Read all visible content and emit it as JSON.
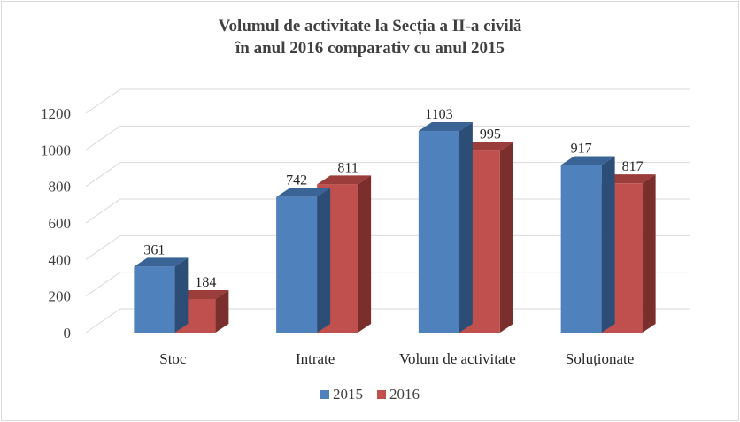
{
  "chart_data": {
    "type": "bar",
    "title": [
      "Volumul de activitate la Secția a II-a civilă",
      "în anul 2016 comparativ cu anul 2015"
    ],
    "categories": [
      "Stoc",
      "Intrate",
      "Volum de activitate",
      "Soluționate"
    ],
    "series": [
      {
        "name": "2015",
        "values": [
          361,
          742,
          1103,
          917
        ],
        "color": "#4f81bd",
        "top_color": "#3a6496",
        "side_color": "#2c4d75"
      },
      {
        "name": "2016",
        "values": [
          184,
          811,
          995,
          817
        ],
        "color": "#c0504d",
        "top_color": "#9b3d3a",
        "side_color": "#7a2f2d"
      }
    ],
    "yticks": [
      0,
      200,
      400,
      600,
      800,
      1000,
      1200
    ],
    "ylim": [
      0,
      1200
    ],
    "grid": true,
    "legend": "bottom",
    "style": "3d-clustered-column"
  }
}
